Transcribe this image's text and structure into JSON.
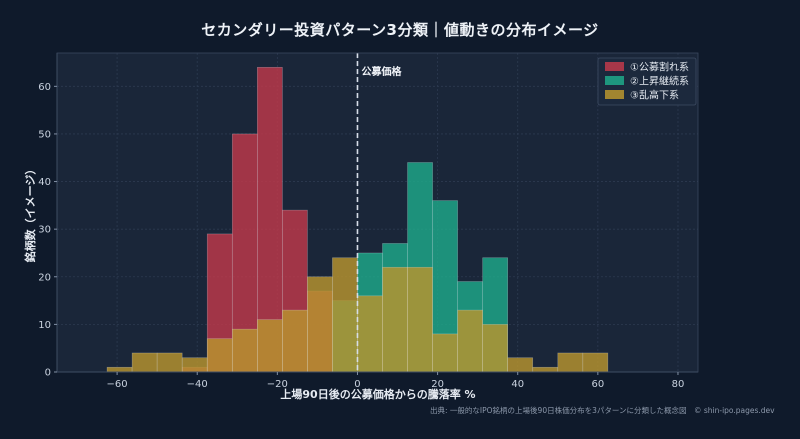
{
  "chart_data": {
    "type": "bar",
    "title": "セカンダリー投資パターン3分類｜値動きの分布イメージ",
    "xlabel": "上場90日後の公募価格からの騰落率 %",
    "ylabel": "銘柄数（イメージ）",
    "xlim": [
      -75,
      85
    ],
    "ylim": [
      0,
      67
    ],
    "xticks": [
      -60,
      -40,
      -20,
      0,
      20,
      40,
      60,
      80
    ],
    "yticks": [
      0,
      10,
      20,
      30,
      40,
      50,
      60
    ],
    "bin_width": 6.25,
    "legend_position": "top-right",
    "annotation": {
      "label": "公募価格",
      "x": 0
    },
    "series": [
      {
        "name": "①公募割れ系",
        "color": "#c0394b",
        "bins": [
          [
            -43.75,
            1
          ],
          [
            -37.5,
            29
          ],
          [
            -31.25,
            50
          ],
          [
            -25,
            64
          ],
          [
            -18.75,
            34
          ],
          [
            -12.5,
            17
          ]
        ]
      },
      {
        "name": "②上昇継続系",
        "color": "#1fa98a",
        "bins": [
          [
            -6.25,
            15
          ],
          [
            0,
            25
          ],
          [
            6.25,
            27
          ],
          [
            12.5,
            44
          ],
          [
            18.75,
            36
          ],
          [
            25,
            19
          ],
          [
            31.25,
            24
          ]
        ]
      },
      {
        "name": "③乱高下系",
        "color": "#b8952e",
        "bins": [
          [
            -62.5,
            1
          ],
          [
            -56.25,
            4
          ],
          [
            -50,
            4
          ],
          [
            -43.75,
            3
          ],
          [
            -37.5,
            7
          ],
          [
            -31.25,
            9
          ],
          [
            -25,
            11
          ],
          [
            -18.75,
            13
          ],
          [
            -12.5,
            20
          ],
          [
            -6.25,
            24
          ],
          [
            0,
            16
          ],
          [
            6.25,
            22
          ],
          [
            12.5,
            22
          ],
          [
            18.75,
            8
          ],
          [
            25,
            13
          ],
          [
            31.25,
            10
          ],
          [
            37.5,
            3
          ],
          [
            43.75,
            1
          ],
          [
            50,
            4
          ],
          [
            56.25,
            4
          ]
        ]
      }
    ]
  },
  "footer": "出典: 一般的なIPO銘柄の上場後90日株価分布を3パターンに分類した概念図　© shin-ipo.pages.dev"
}
